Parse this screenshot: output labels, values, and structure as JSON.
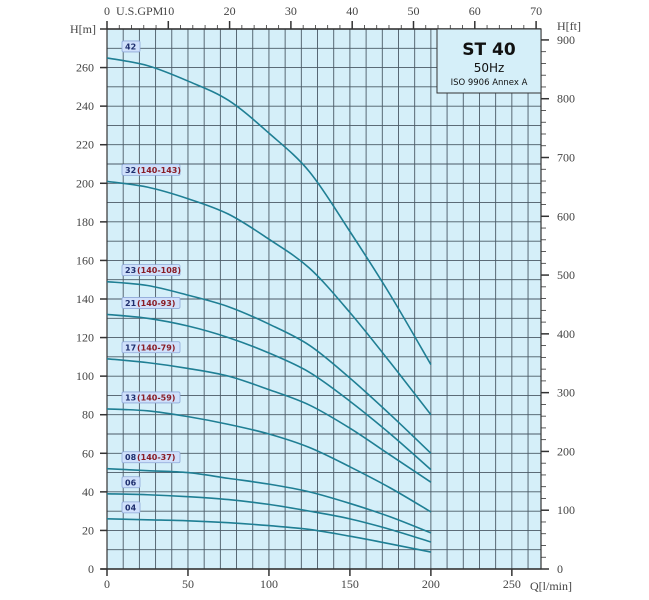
{
  "chart_data": {
    "type": "line",
    "title": "ST 40",
    "subtitle": "50Hz",
    "standard": "ISO 9906 Annex A",
    "xlabel": "Q[l/min]",
    "ylabel": "H[m]",
    "y2label": "H[ft]",
    "x2label": "U.S.GPM",
    "xlim": [
      0,
      268
    ],
    "ylim": [
      0,
      280
    ],
    "y2lim": [
      0,
      918.6
    ],
    "x2lim": [
      0,
      70.8
    ],
    "xticks": [
      0,
      50,
      100,
      150,
      200,
      250
    ],
    "yticks": [
      0,
      20,
      40,
      60,
      80,
      100,
      120,
      140,
      160,
      180,
      200,
      220,
      240,
      260
    ],
    "y2ticks": [
      0,
      100,
      200,
      300,
      400,
      500,
      600,
      700,
      800,
      900
    ],
    "x2ticks": [
      0,
      10,
      20,
      30,
      40,
      50,
      60,
      70
    ],
    "grid": true,
    "line_color": "#1f7f94",
    "plot_bg": "#d5eff9",
    "x": [
      0,
      25,
      50,
      75,
      100,
      125,
      150,
      175,
      200
    ],
    "series": [
      {
        "name": "42",
        "range": "",
        "values": [
          265,
          261,
          253,
          243,
          226,
          206,
          175,
          142,
          106
        ]
      },
      {
        "name": "32",
        "range": "(140-143)",
        "values": [
          201,
          198,
          192,
          184,
          171,
          156,
          133,
          107,
          80
        ]
      },
      {
        "name": "23",
        "range": "(140-108)",
        "values": [
          149,
          147,
          142,
          136,
          127,
          116,
          99,
          80,
          60
        ]
      },
      {
        "name": "21",
        "range": "(140-93)",
        "values": [
          132,
          130,
          126,
          120,
          112,
          102,
          87,
          70,
          51.5
        ]
      },
      {
        "name": "17",
        "range": "(140-79)",
        "values": [
          109,
          107,
          104,
          100,
          93,
          85,
          73,
          59,
          45
        ]
      },
      {
        "name": "13",
        "range": "(140-59)",
        "values": [
          83,
          82,
          79,
          75,
          70,
          63,
          53,
          42,
          29.6
        ]
      },
      {
        "name": "08",
        "range": "(140-37)",
        "values": [
          52,
          51,
          50,
          47,
          44,
          40,
          34,
          27,
          18.7
        ]
      },
      {
        "name": "06",
        "range": "",
        "values": [
          39,
          38.5,
          37.5,
          36,
          33.5,
          30,
          26,
          20.5,
          14
        ]
      },
      {
        "name": "04",
        "range": "",
        "values": [
          26,
          25.5,
          25,
          24,
          22.5,
          20.5,
          17,
          13,
          8.8
        ]
      }
    ]
  }
}
